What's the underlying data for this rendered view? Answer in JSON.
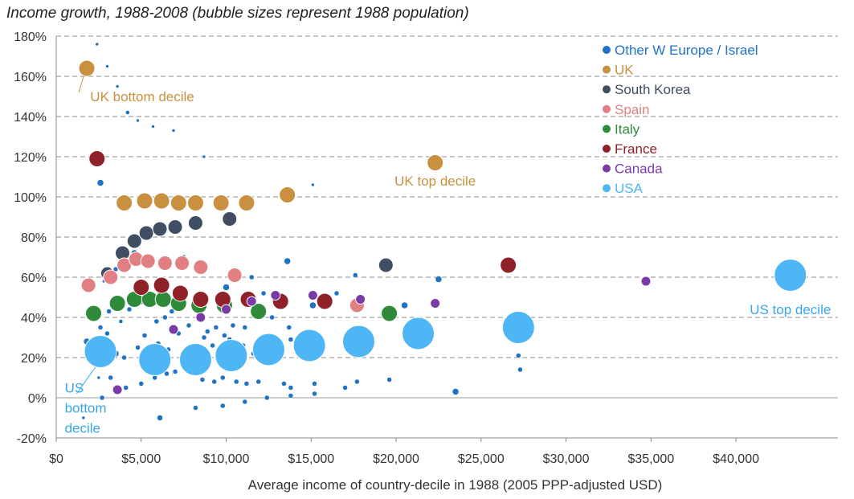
{
  "chart_data": {
    "type": "scatter",
    "title": "Income growth, 1988-2008 (bubble sizes represent 1988 population)",
    "xlabel": "Average income of country-decile in 1988 (2005 PPP-adjusted USD)",
    "ylabel": "",
    "xlim": [
      0,
      46000
    ],
    "ylim": [
      -0.2,
      1.8
    ],
    "x_ticks": [
      {
        "value": 0,
        "label": "$0"
      },
      {
        "value": 5000,
        "label": "$5,000"
      },
      {
        "value": 10000,
        "label": "$10,000"
      },
      {
        "value": 15000,
        "label": "$15,000"
      },
      {
        "value": 20000,
        "label": "$20,000"
      },
      {
        "value": 25000,
        "label": "$25,000"
      },
      {
        "value": 30000,
        "label": "$30,000"
      },
      {
        "value": 35000,
        "label": "$35,000"
      },
      {
        "value": 40000,
        "label": "$40,000"
      }
    ],
    "y_ticks": [
      {
        "value": -0.2,
        "label": "-20%"
      },
      {
        "value": 0,
        "label": "0%"
      },
      {
        "value": 0.2,
        "label": "20%"
      },
      {
        "value": 0.4,
        "label": "40%"
      },
      {
        "value": 0.6,
        "label": "60%"
      },
      {
        "value": 0.8,
        "label": "80%"
      },
      {
        "value": 1.0,
        "label": "100%"
      },
      {
        "value": 1.2,
        "label": "120%"
      },
      {
        "value": 1.4,
        "label": "140%"
      },
      {
        "value": 1.6,
        "label": "160%"
      },
      {
        "value": 1.8,
        "label": "180%"
      }
    ],
    "grid": "horizontal-dashed",
    "legend_position": "top-right",
    "annotations": [
      {
        "text": "UK bottom decile",
        "x": 2000,
        "y": 1.5,
        "color": "#c9913f"
      },
      {
        "text": "UK top decile",
        "x": 22300,
        "y": 1.08,
        "color": "#c9913f"
      },
      {
        "text": "US top decile",
        "x": 43200,
        "y": 0.44,
        "color": "#3aa7e8"
      },
      {
        "text": "US",
        "x": 500,
        "y": 0.05,
        "color": "#3aa7e8"
      },
      {
        "text": "bottom",
        "x": 500,
        "y": -0.05,
        "color": "#3aa7e8"
      },
      {
        "text": "decile",
        "x": 500,
        "y": -0.15,
        "color": "#3aa7e8"
      }
    ],
    "series": [
      {
        "name": "Other W Europe / Israel",
        "color": "#1f72c4",
        "points": [
          {
            "x": 2400,
            "y": 1.76,
            "r": 2
          },
          {
            "x": 3000,
            "y": 1.65,
            "r": 2
          },
          {
            "x": 3600,
            "y": 1.55,
            "r": 2
          },
          {
            "x": 4200,
            "y": 1.42,
            "r": 2.5
          },
          {
            "x": 4800,
            "y": 1.38,
            "r": 2
          },
          {
            "x": 5700,
            "y": 1.35,
            "r": 2
          },
          {
            "x": 6900,
            "y": 1.33,
            "r": 2
          },
          {
            "x": 8700,
            "y": 1.2,
            "r": 2
          },
          {
            "x": 15100,
            "y": 1.06,
            "r": 2
          },
          {
            "x": 2600,
            "y": 1.07,
            "r": 4
          },
          {
            "x": 3000,
            "y": 0.63,
            "r": 3
          },
          {
            "x": 3500,
            "y": 0.64,
            "r": 3
          },
          {
            "x": 4600,
            "y": 0.72,
            "r": 4
          },
          {
            "x": 5500,
            "y": 0.7,
            "r": 4
          },
          {
            "x": 7500,
            "y": 0.7,
            "r": 3
          },
          {
            "x": 8200,
            "y": 0.66,
            "r": 3
          },
          {
            "x": 10000,
            "y": 0.55,
            "r": 4
          },
          {
            "x": 11500,
            "y": 0.6,
            "r": 3
          },
          {
            "x": 12200,
            "y": 0.52,
            "r": 3
          },
          {
            "x": 13600,
            "y": 0.68,
            "r": 4
          },
          {
            "x": 16500,
            "y": 0.52,
            "r": 3
          },
          {
            "x": 17600,
            "y": 0.61,
            "r": 3
          },
          {
            "x": 22500,
            "y": 0.59,
            "r": 4
          },
          {
            "x": 2800,
            "y": 0.58,
            "r": 2
          },
          {
            "x": 3100,
            "y": 0.43,
            "r": 3
          },
          {
            "x": 3800,
            "y": 0.38,
            "r": 2.5
          },
          {
            "x": 4300,
            "y": 0.44,
            "r": 3
          },
          {
            "x": 4500,
            "y": 0.46,
            "r": 3
          },
          {
            "x": 5000,
            "y": 0.48,
            "r": 4
          },
          {
            "x": 5400,
            "y": 0.46,
            "r": 3
          },
          {
            "x": 5900,
            "y": 0.38,
            "r": 3
          },
          {
            "x": 6400,
            "y": 0.4,
            "r": 3
          },
          {
            "x": 6800,
            "y": 0.43,
            "r": 3
          },
          {
            "x": 7300,
            "y": 0.45,
            "r": 3
          },
          {
            "x": 7800,
            "y": 0.36,
            "r": 3
          },
          {
            "x": 8400,
            "y": 0.42,
            "r": 3
          },
          {
            "x": 8900,
            "y": 0.33,
            "r": 3
          },
          {
            "x": 9400,
            "y": 0.35,
            "r": 3
          },
          {
            "x": 9900,
            "y": 0.31,
            "r": 3
          },
          {
            "x": 10400,
            "y": 0.36,
            "r": 3
          },
          {
            "x": 11100,
            "y": 0.35,
            "r": 3
          },
          {
            "x": 12700,
            "y": 0.4,
            "r": 3
          },
          {
            "x": 13700,
            "y": 0.35,
            "r": 3
          },
          {
            "x": 15100,
            "y": 0.46,
            "r": 4
          },
          {
            "x": 19700,
            "y": 0.44,
            "r": 3
          },
          {
            "x": 20500,
            "y": 0.46,
            "r": 4
          },
          {
            "x": 1800,
            "y": 0.28,
            "r": 4
          },
          {
            "x": 2000,
            "y": 0.23,
            "r": 4
          },
          {
            "x": 2600,
            "y": 0.35,
            "r": 3
          },
          {
            "x": 3000,
            "y": 0.32,
            "r": 3
          },
          {
            "x": 3500,
            "y": 0.22,
            "r": 4
          },
          {
            "x": 4000,
            "y": 0.2,
            "r": 3
          },
          {
            "x": 4800,
            "y": 0.25,
            "r": 3
          },
          {
            "x": 5200,
            "y": 0.31,
            "r": 3
          },
          {
            "x": 6000,
            "y": 0.27,
            "r": 3
          },
          {
            "x": 6600,
            "y": 0.24,
            "r": 3
          },
          {
            "x": 7200,
            "y": 0.32,
            "r": 3
          },
          {
            "x": 7800,
            "y": 0.2,
            "r": 3
          },
          {
            "x": 8300,
            "y": 0.22,
            "r": 3
          },
          {
            "x": 8700,
            "y": 0.3,
            "r": 3
          },
          {
            "x": 9200,
            "y": 0.26,
            "r": 3
          },
          {
            "x": 9700,
            "y": 0.18,
            "r": 3
          },
          {
            "x": 10200,
            "y": 0.29,
            "r": 3
          },
          {
            "x": 11000,
            "y": 0.26,
            "r": 3
          },
          {
            "x": 11600,
            "y": 0.22,
            "r": 3
          },
          {
            "x": 12300,
            "y": 0.24,
            "r": 3
          },
          {
            "x": 13100,
            "y": 0.2,
            "r": 3
          },
          {
            "x": 13800,
            "y": 0.29,
            "r": 3
          },
          {
            "x": 27200,
            "y": 0.21,
            "r": 3
          },
          {
            "x": 2500,
            "y": 0.1,
            "r": 2
          },
          {
            "x": 2700,
            "y": 0.0,
            "r": 3
          },
          {
            "x": 3200,
            "y": 0.1,
            "r": 3
          },
          {
            "x": 4100,
            "y": 0.05,
            "r": 3
          },
          {
            "x": 5000,
            "y": 0.07,
            "r": 3
          },
          {
            "x": 5800,
            "y": 0.1,
            "r": 3
          },
          {
            "x": 6500,
            "y": 0.12,
            "r": 3
          },
          {
            "x": 7000,
            "y": 0.13,
            "r": 3
          },
          {
            "x": 7500,
            "y": 0.17,
            "r": 3
          },
          {
            "x": 8200,
            "y": 0.12,
            "r": 3
          },
          {
            "x": 8600,
            "y": 0.09,
            "r": 3
          },
          {
            "x": 9300,
            "y": 0.08,
            "r": 3
          },
          {
            "x": 9800,
            "y": 0.1,
            "r": 3
          },
          {
            "x": 10600,
            "y": 0.08,
            "r": 3
          },
          {
            "x": 11200,
            "y": 0.07,
            "r": 3
          },
          {
            "x": 11900,
            "y": 0.08,
            "r": 3
          },
          {
            "x": 13400,
            "y": 0.07,
            "r": 3
          },
          {
            "x": 13800,
            "y": 0.05,
            "r": 3
          },
          {
            "x": 15200,
            "y": 0.07,
            "r": 3
          },
          {
            "x": 17000,
            "y": 0.05,
            "r": 3
          },
          {
            "x": 17700,
            "y": 0.08,
            "r": 3
          },
          {
            "x": 19600,
            "y": 0.09,
            "r": 3
          },
          {
            "x": 27300,
            "y": 0.14,
            "r": 3
          },
          {
            "x": 1600,
            "y": -0.1,
            "r": 2
          },
          {
            "x": 6100,
            "y": -0.1,
            "r": 3.5
          },
          {
            "x": 8200,
            "y": -0.05,
            "r": 3
          },
          {
            "x": 9800,
            "y": -0.04,
            "r": 3
          },
          {
            "x": 11100,
            "y": -0.02,
            "r": 3
          },
          {
            "x": 12400,
            "y": 0.0,
            "r": 3
          },
          {
            "x": 13800,
            "y": 0.01,
            "r": 3
          },
          {
            "x": 15200,
            "y": 0.02,
            "r": 3
          },
          {
            "x": 23500,
            "y": 0.03,
            "r": 4
          }
        ]
      },
      {
        "name": "UK",
        "color": "#c9913f",
        "points": [
          {
            "x": 1800,
            "y": 1.64,
            "r": 10
          },
          {
            "x": 4000,
            "y": 0.97,
            "r": 10
          },
          {
            "x": 5200,
            "y": 0.98,
            "r": 10
          },
          {
            "x": 6200,
            "y": 0.98,
            "r": 10
          },
          {
            "x": 7200,
            "y": 0.97,
            "r": 10
          },
          {
            "x": 8200,
            "y": 0.97,
            "r": 10
          },
          {
            "x": 9700,
            "y": 0.97,
            "r": 10
          },
          {
            "x": 11200,
            "y": 0.97,
            "r": 10
          },
          {
            "x": 13600,
            "y": 1.01,
            "r": 10
          },
          {
            "x": 22300,
            "y": 1.17,
            "r": 10
          }
        ]
      },
      {
        "name": "South Korea",
        "color": "#3f4e63",
        "points": [
          {
            "x": 3000,
            "y": 0.62,
            "r": 8
          },
          {
            "x": 3900,
            "y": 0.72,
            "r": 9
          },
          {
            "x": 4600,
            "y": 0.78,
            "r": 9
          },
          {
            "x": 5300,
            "y": 0.82,
            "r": 9
          },
          {
            "x": 6100,
            "y": 0.84,
            "r": 9
          },
          {
            "x": 7000,
            "y": 0.85,
            "r": 9
          },
          {
            "x": 8200,
            "y": 0.87,
            "r": 9
          },
          {
            "x": 10200,
            "y": 0.89,
            "r": 9
          },
          {
            "x": 19400,
            "y": 0.66,
            "r": 9
          }
        ]
      },
      {
        "name": "Spain",
        "color": "#e27f82",
        "points": [
          {
            "x": 1900,
            "y": 0.56,
            "r": 9
          },
          {
            "x": 3200,
            "y": 0.6,
            "r": 9
          },
          {
            "x": 4000,
            "y": 0.66,
            "r": 9
          },
          {
            "x": 4700,
            "y": 0.69,
            "r": 9
          },
          {
            "x": 5400,
            "y": 0.68,
            "r": 9
          },
          {
            "x": 6400,
            "y": 0.67,
            "r": 9
          },
          {
            "x": 7400,
            "y": 0.67,
            "r": 9
          },
          {
            "x": 8500,
            "y": 0.65,
            "r": 9
          },
          {
            "x": 10500,
            "y": 0.61,
            "r": 9
          },
          {
            "x": 17700,
            "y": 0.46,
            "r": 9
          }
        ]
      },
      {
        "name": "Italy",
        "color": "#2e8b3a",
        "points": [
          {
            "x": 2200,
            "y": 0.42,
            "r": 10
          },
          {
            "x": 3600,
            "y": 0.47,
            "r": 10
          },
          {
            "x": 4600,
            "y": 0.49,
            "r": 10
          },
          {
            "x": 5500,
            "y": 0.49,
            "r": 10
          },
          {
            "x": 6300,
            "y": 0.49,
            "r": 10
          },
          {
            "x": 7200,
            "y": 0.47,
            "r": 10
          },
          {
            "x": 8400,
            "y": 0.46,
            "r": 10
          },
          {
            "x": 9900,
            "y": 0.46,
            "r": 10
          },
          {
            "x": 11900,
            "y": 0.43,
            "r": 10
          },
          {
            "x": 19600,
            "y": 0.42,
            "r": 10
          }
        ]
      },
      {
        "name": "France",
        "color": "#8f2229",
        "points": [
          {
            "x": 2400,
            "y": 1.19,
            "r": 10
          },
          {
            "x": 5000,
            "y": 0.55,
            "r": 10
          },
          {
            "x": 6200,
            "y": 0.56,
            "r": 10
          },
          {
            "x": 7300,
            "y": 0.52,
            "r": 10
          },
          {
            "x": 8500,
            "y": 0.49,
            "r": 10
          },
          {
            "x": 9800,
            "y": 0.49,
            "r": 10
          },
          {
            "x": 11300,
            "y": 0.49,
            "r": 10
          },
          {
            "x": 13200,
            "y": 0.48,
            "r": 10
          },
          {
            "x": 15800,
            "y": 0.48,
            "r": 10
          },
          {
            "x": 26600,
            "y": 0.66,
            "r": 10
          }
        ]
      },
      {
        "name": "Canada",
        "color": "#7a3aa8",
        "points": [
          {
            "x": 3600,
            "y": 0.04,
            "r": 6
          },
          {
            "x": 6900,
            "y": 0.34,
            "r": 6
          },
          {
            "x": 8500,
            "y": 0.4,
            "r": 6
          },
          {
            "x": 10000,
            "y": 0.44,
            "r": 6
          },
          {
            "x": 11500,
            "y": 0.48,
            "r": 6
          },
          {
            "x": 12900,
            "y": 0.51,
            "r": 6
          },
          {
            "x": 15100,
            "y": 0.51,
            "r": 6
          },
          {
            "x": 17900,
            "y": 0.49,
            "r": 6
          },
          {
            "x": 22300,
            "y": 0.47,
            "r": 6
          },
          {
            "x": 34700,
            "y": 0.58,
            "r": 6
          }
        ]
      },
      {
        "name": "USA",
        "color": "#4fb6f5",
        "points": [
          {
            "x": 2600,
            "y": 0.23,
            "r": 20
          },
          {
            "x": 5800,
            "y": 0.19,
            "r": 20
          },
          {
            "x": 8200,
            "y": 0.19,
            "r": 20
          },
          {
            "x": 10300,
            "y": 0.21,
            "r": 20
          },
          {
            "x": 12500,
            "y": 0.24,
            "r": 20
          },
          {
            "x": 14900,
            "y": 0.26,
            "r": 20
          },
          {
            "x": 17800,
            "y": 0.28,
            "r": 20
          },
          {
            "x": 21300,
            "y": 0.32,
            "r": 20
          },
          {
            "x": 27200,
            "y": 0.35,
            "r": 20
          },
          {
            "x": 43200,
            "y": 0.61,
            "r": 20
          }
        ]
      }
    ]
  }
}
